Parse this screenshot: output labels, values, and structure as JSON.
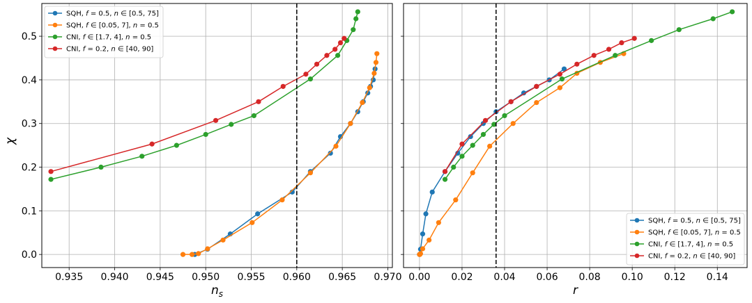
{
  "chart_data": [
    {
      "type": "line",
      "xlabel": "n_s",
      "ylabel": "χ",
      "xlim": [
        0.932,
        0.9705
      ],
      "ylim": [
        -0.03,
        0.575
      ],
      "xticks": [
        "0.935",
        "0.940",
        "0.945",
        "0.950",
        "0.955",
        "0.960",
        "0.965",
        "0.970"
      ],
      "yticks": [
        "0.0",
        "0.1",
        "0.2",
        "0.3",
        "0.4",
        "0.5"
      ],
      "grid": true,
      "legend_position": "top-left",
      "vline": 0.96,
      "series": [
        {
          "name": "SQH, f = 0.5, n ∈ [0.5, 75]",
          "color": "#1f77b4",
          "x": [
            0.9488,
            0.9502,
            0.9527,
            0.9557,
            0.9595,
            0.9615,
            0.9637,
            0.9648,
            0.9659,
            0.9667,
            0.9673,
            0.9678,
            0.9681,
            0.9684,
            0.9686
          ],
          "y": [
            0.0,
            0.012,
            0.047,
            0.093,
            0.143,
            0.19,
            0.232,
            0.27,
            0.3,
            0.327,
            0.35,
            0.37,
            0.385,
            0.4,
            0.425
          ]
        },
        {
          "name": "SQH, f ∈ [0.05, 7], n = 0.5",
          "color": "#ff7f0e",
          "x": [
            0.9475,
            0.9485,
            0.9492,
            0.9502,
            0.9519,
            0.9551,
            0.9584,
            0.9615,
            0.9643,
            0.9659,
            0.9672,
            0.968,
            0.9685,
            0.9687,
            0.9688
          ],
          "y": [
            0.0,
            0.0,
            0.002,
            0.013,
            0.033,
            0.073,
            0.125,
            0.187,
            0.248,
            0.3,
            0.348,
            0.382,
            0.415,
            0.44,
            0.46
          ]
        },
        {
          "name": "CNI, f ∈ [1.7, 4], n = 0.5",
          "color": "#2ca02c",
          "x": [
            0.933,
            0.9385,
            0.943,
            0.9468,
            0.95,
            0.9528,
            0.9553,
            0.9615,
            0.9645,
            0.9655,
            0.9662,
            0.9665,
            0.9667
          ],
          "y": [
            0.172,
            0.2,
            0.225,
            0.25,
            0.275,
            0.298,
            0.318,
            0.402,
            0.456,
            0.49,
            0.515,
            0.54,
            0.556
          ]
        },
        {
          "name": "CNI, f = 0.2, n ∈ [40, 90]",
          "color": "#d62728",
          "x": [
            0.933,
            0.9441,
            0.9511,
            0.9558,
            0.9585,
            0.961,
            0.9622,
            0.9633,
            0.9642,
            0.9648,
            0.9652
          ],
          "y": [
            0.19,
            0.253,
            0.307,
            0.35,
            0.385,
            0.413,
            0.436,
            0.456,
            0.47,
            0.485,
            0.495
          ]
        }
      ]
    },
    {
      "type": "line",
      "xlabel": "r",
      "xlim": [
        -0.0075,
        0.154
      ],
      "ylim": [
        -0.03,
        0.575
      ],
      "xticks": [
        "0.00",
        "0.02",
        "0.04",
        "0.06",
        "0.08",
        "0.10",
        "0.12",
        "0.14"
      ],
      "grid": true,
      "legend_position": "bottom-right",
      "vline": 0.036,
      "series": [
        {
          "name": "SQH, f = 0.5, n ∈ [0.5, 75]",
          "color": "#1f77b4",
          "x": [
            0.0,
            0.0005,
            0.0015,
            0.003,
            0.006,
            0.012,
            0.018,
            0.024,
            0.03,
            0.036,
            0.043,
            0.049,
            0.055,
            0.061,
            0.068
          ],
          "y": [
            0.0,
            0.012,
            0.047,
            0.093,
            0.143,
            0.19,
            0.232,
            0.27,
            0.3,
            0.327,
            0.35,
            0.37,
            0.385,
            0.4,
            0.425
          ]
        },
        {
          "name": "SQH, f ∈ [0.05, 7], n = 0.5",
          "color": "#ff7f0e",
          "x": [
            0.0,
            0.0002,
            0.0005,
            0.0015,
            0.0045,
            0.009,
            0.017,
            0.025,
            0.033,
            0.044,
            0.055,
            0.066,
            0.074,
            0.085,
            0.096
          ],
          "y": [
            0.0,
            0.0,
            0.002,
            0.013,
            0.033,
            0.073,
            0.125,
            0.187,
            0.248,
            0.3,
            0.348,
            0.382,
            0.415,
            0.44,
            0.46
          ]
        },
        {
          "name": "CNI, f ∈ [1.7, 4], n = 0.5",
          "color": "#2ca02c",
          "x": [
            0.012,
            0.016,
            0.02,
            0.025,
            0.03,
            0.035,
            0.04,
            0.067,
            0.092,
            0.109,
            0.122,
            0.138,
            0.147
          ],
          "y": [
            0.172,
            0.2,
            0.225,
            0.25,
            0.275,
            0.298,
            0.318,
            0.402,
            0.456,
            0.49,
            0.515,
            0.54,
            0.556
          ]
        },
        {
          "name": "CNI, f = 0.2, n ∈ [40, 90]",
          "color": "#d62728",
          "x": [
            0.012,
            0.02,
            0.031,
            0.043,
            0.055,
            0.066,
            0.074,
            0.082,
            0.089,
            0.095,
            0.101
          ],
          "y": [
            0.19,
            0.253,
            0.307,
            0.35,
            0.385,
            0.413,
            0.436,
            0.456,
            0.47,
            0.485,
            0.495
          ]
        }
      ]
    }
  ]
}
